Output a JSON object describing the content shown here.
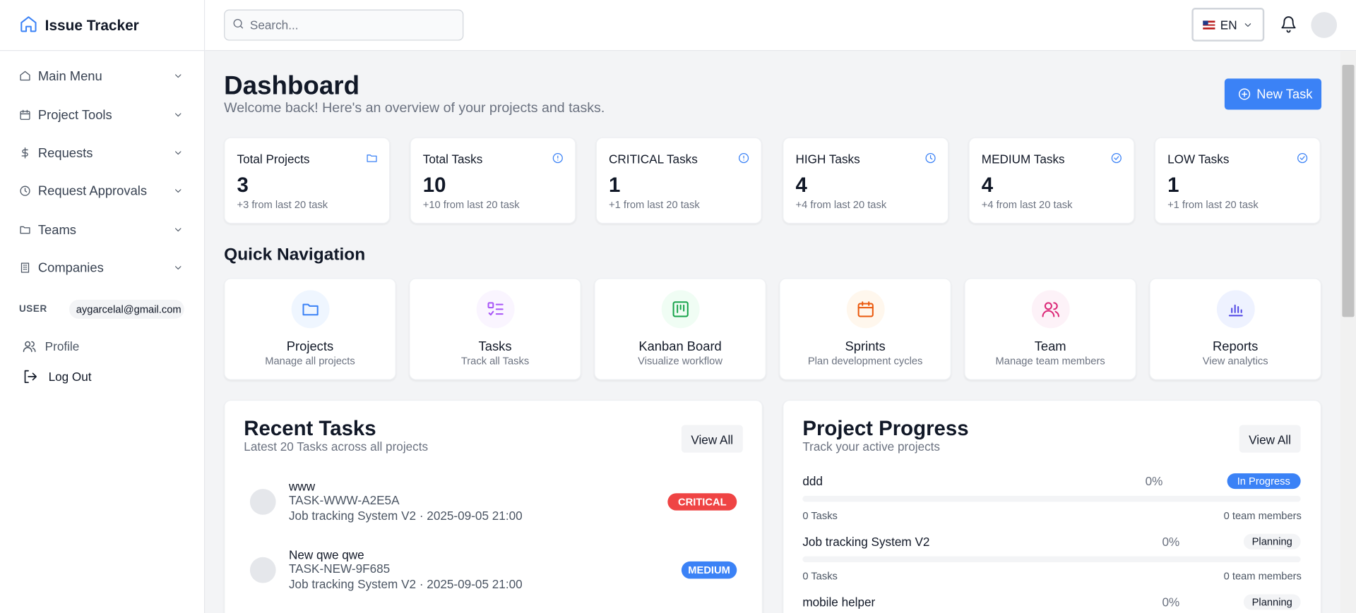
{
  "sidebar": {
    "brand": "Issue Tracker",
    "menu": [
      "Main Menu",
      "Project Tools",
      "Requests",
      "Request Approvals",
      "Teams",
      "Companies"
    ],
    "user_label": "USER",
    "email": "aygarcelal@gmail.com",
    "links": [
      "Profile",
      "Log Out"
    ]
  },
  "header": {
    "search_placeholder": "Search...",
    "language": "EN"
  },
  "dashboard": {
    "title": "Dashboard",
    "subtitle": "Welcome back! Here's an overview of your projects and tasks.",
    "new_task": "New Task"
  },
  "stats": [
    {
      "label": "Total Projects",
      "value": 3,
      "note": "+3 from last 20 task"
    },
    {
      "label": "Total Tasks",
      "value": 10,
      "note": "+10 from last 20 task"
    },
    {
      "label": "CRITICAL Tasks",
      "value": 1,
      "note": "+1 from last 20 task"
    },
    {
      "label": "HIGH Tasks",
      "value": 4,
      "note": "+4 from last 20 task"
    },
    {
      "label": "MEDIUM Tasks",
      "value": 4,
      "note": "+4 from last 20 task"
    },
    {
      "label": "LOW Tasks",
      "value": 1,
      "note": "+1 from last 20 task"
    }
  ],
  "quick_nav": {
    "title": "Quick Navigation",
    "items": [
      {
        "name": "Projects",
        "desc": "Manage all projects"
      },
      {
        "name": "Tasks",
        "desc": "Track all Tasks"
      },
      {
        "name": "Kanban Board",
        "desc": "Visualize workflow"
      },
      {
        "name": "Sprints",
        "desc": "Plan development cycles"
      },
      {
        "name": "Team",
        "desc": "Manage team members"
      },
      {
        "name": "Reports",
        "desc": "View analytics"
      }
    ]
  },
  "recent_tasks": {
    "title": "Recent Tasks",
    "subtitle": "Latest 20 Tasks across all projects",
    "view_all": "View All",
    "tasks": [
      {
        "title": "www",
        "id": "TASK-WWW-A2E5A",
        "meta": "Job tracking System V2 · 2025-09-05 21:00",
        "priority": "CRITICAL"
      },
      {
        "title": "New qwe qwe",
        "id": "TASK-NEW-9F685",
        "meta": "Job tracking System V2 · 2025-09-05 21:00",
        "priority": "MEDIUM"
      }
    ]
  },
  "project_progress": {
    "title": "Project Progress",
    "subtitle": "Track your active projects",
    "view_all": "View All",
    "projects": [
      {
        "name": "ddd",
        "progress": 0,
        "progress_label": "0%",
        "status": "In Progress",
        "tasks": "0 Tasks",
        "members": "0 team members"
      },
      {
        "name": "Job tracking System V2",
        "progress": 0,
        "progress_label": "0%",
        "status": "Planning",
        "tasks": "0 Tasks",
        "members": "0 team members"
      },
      {
        "name": "mobile helper",
        "progress": 0,
        "progress_label": "0%",
        "status": "Planning"
      }
    ]
  }
}
